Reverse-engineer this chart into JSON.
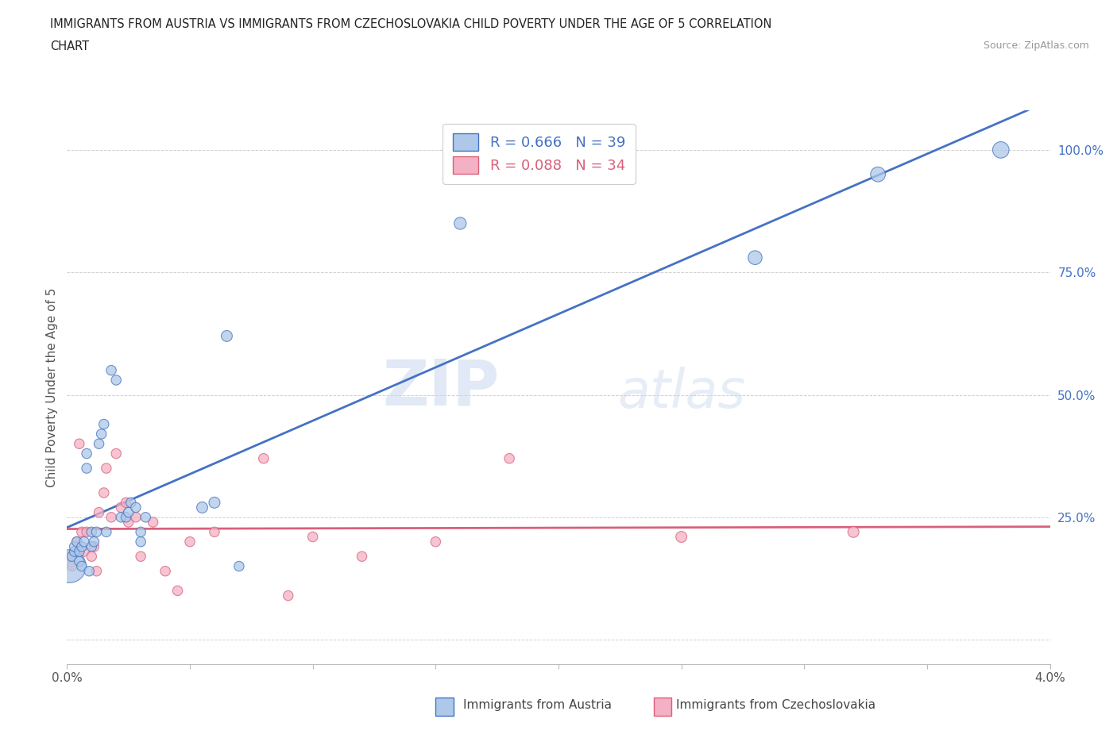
{
  "title_line1": "IMMIGRANTS FROM AUSTRIA VS IMMIGRANTS FROM CZECHOSLOVAKIA CHILD POVERTY UNDER THE AGE OF 5 CORRELATION",
  "title_line2": "CHART",
  "source": "Source: ZipAtlas.com",
  "ylabel": "Child Poverty Under the Age of 5",
  "austria_R": 0.666,
  "austria_N": 39,
  "czech_R": 0.088,
  "czech_N": 34,
  "austria_color": "#adc8e8",
  "czech_color": "#f4b0c4",
  "austria_line_color": "#4472c4",
  "czech_line_color": "#d9607a",
  "background_color": "#ffffff",
  "xlim": [
    0.0,
    0.04
  ],
  "ylim": [
    -0.05,
    1.08
  ],
  "yticks": [
    0.0,
    0.25,
    0.5,
    0.75,
    1.0
  ],
  "ytick_labels": [
    "",
    "25.0%",
    "50.0%",
    "75.0%",
    "100.0%"
  ],
  "xticks": [
    0.0,
    0.005,
    0.01,
    0.015,
    0.02,
    0.025,
    0.03,
    0.035,
    0.04
  ],
  "xtick_labels": [
    "0.0%",
    "",
    "",
    "",
    "",
    "",
    "",
    "",
    "4.0%"
  ],
  "watermark_zip": "ZIP",
  "watermark_atlas": "atlas",
  "austria_x": [
    0.0001,
    0.0002,
    0.0003,
    0.0003,
    0.0004,
    0.0005,
    0.0005,
    0.0006,
    0.0006,
    0.0007,
    0.0008,
    0.0008,
    0.0009,
    0.001,
    0.001,
    0.0011,
    0.0012,
    0.0013,
    0.0014,
    0.0015,
    0.0016,
    0.0018,
    0.002,
    0.0022,
    0.0024,
    0.0025,
    0.0026,
    0.0028,
    0.003,
    0.003,
    0.0032,
    0.0055,
    0.006,
    0.0065,
    0.007,
    0.016,
    0.028,
    0.033,
    0.038
  ],
  "austria_y": [
    0.15,
    0.17,
    0.18,
    0.19,
    0.2,
    0.16,
    0.18,
    0.15,
    0.19,
    0.2,
    0.38,
    0.35,
    0.14,
    0.19,
    0.22,
    0.2,
    0.22,
    0.4,
    0.42,
    0.44,
    0.22,
    0.55,
    0.53,
    0.25,
    0.25,
    0.26,
    0.28,
    0.27,
    0.2,
    0.22,
    0.25,
    0.27,
    0.28,
    0.62,
    0.15,
    0.85,
    0.78,
    0.95,
    1.0
  ],
  "czech_x": [
    0.0001,
    0.0002,
    0.0003,
    0.0004,
    0.0005,
    0.0006,
    0.0007,
    0.0008,
    0.001,
    0.0011,
    0.0012,
    0.0013,
    0.0015,
    0.0016,
    0.0018,
    0.002,
    0.0022,
    0.0024,
    0.0025,
    0.0028,
    0.003,
    0.0035,
    0.004,
    0.0045,
    0.005,
    0.006,
    0.008,
    0.009,
    0.01,
    0.012,
    0.015,
    0.018,
    0.025,
    0.032
  ],
  "czech_y": [
    0.17,
    0.15,
    0.18,
    0.2,
    0.4,
    0.22,
    0.18,
    0.22,
    0.17,
    0.19,
    0.14,
    0.26,
    0.3,
    0.35,
    0.25,
    0.38,
    0.27,
    0.28,
    0.24,
    0.25,
    0.17,
    0.24,
    0.14,
    0.1,
    0.2,
    0.22,
    0.37,
    0.09,
    0.21,
    0.17,
    0.2,
    0.37,
    0.21,
    0.22
  ],
  "austria_sizes": [
    900,
    80,
    80,
    80,
    80,
    80,
    80,
    80,
    80,
    80,
    80,
    80,
    80,
    80,
    80,
    80,
    80,
    80,
    80,
    80,
    80,
    80,
    80,
    80,
    80,
    80,
    80,
    80,
    80,
    80,
    80,
    100,
    100,
    100,
    80,
    120,
    160,
    180,
    220
  ],
  "czech_sizes": [
    80,
    80,
    80,
    80,
    80,
    80,
    80,
    80,
    80,
    80,
    80,
    80,
    80,
    80,
    80,
    80,
    80,
    80,
    80,
    80,
    80,
    80,
    80,
    80,
    80,
    80,
    80,
    80,
    80,
    80,
    80,
    80,
    100,
    100
  ]
}
